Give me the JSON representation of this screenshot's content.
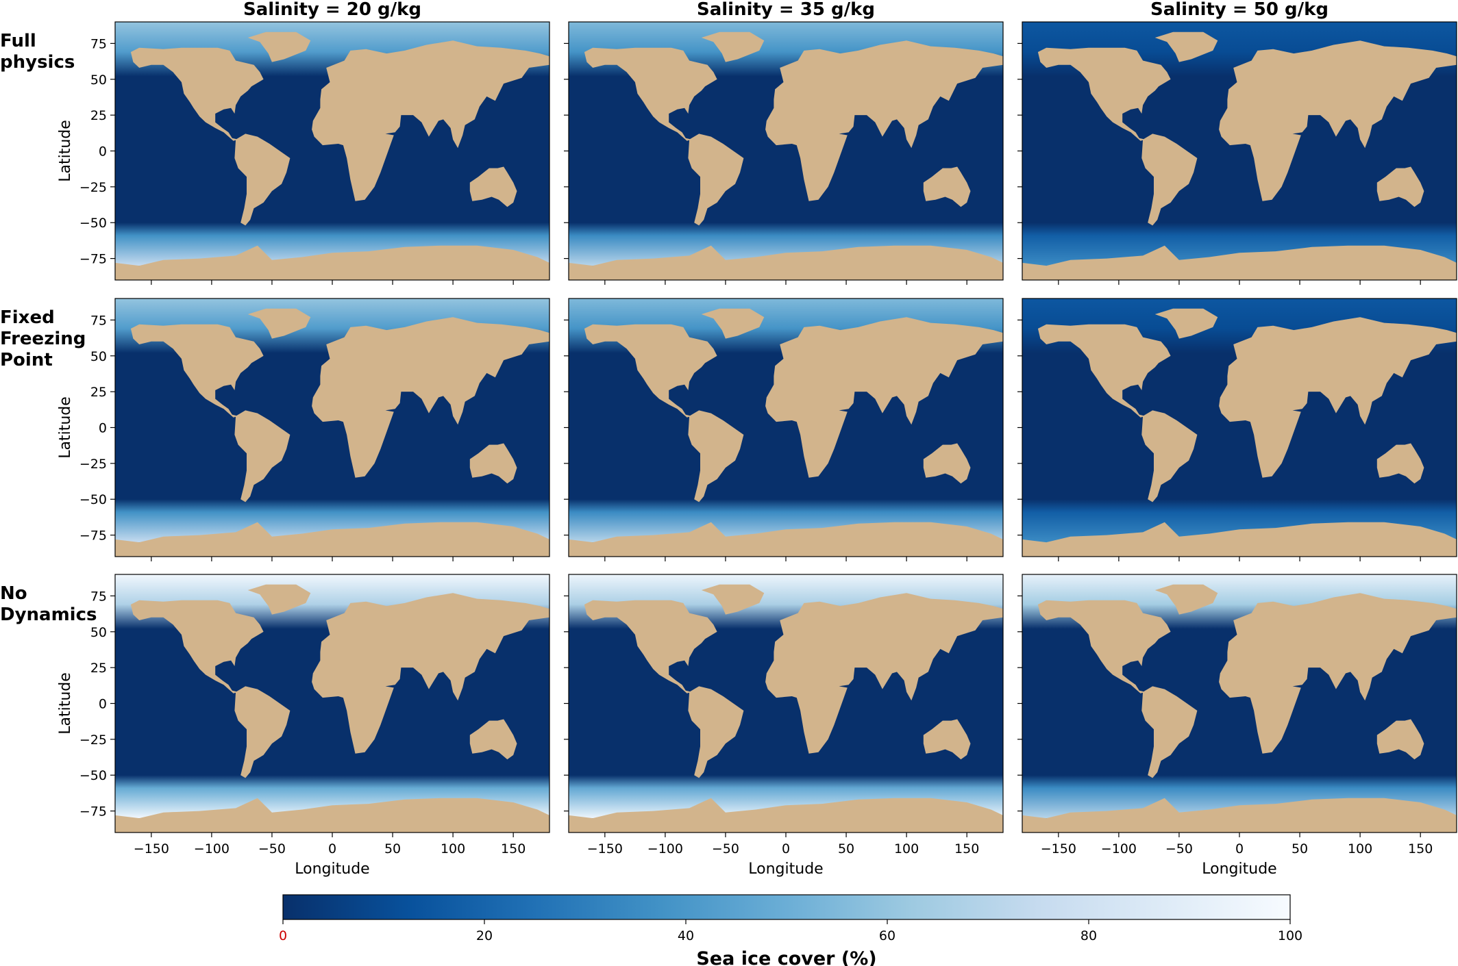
{
  "chart_data": {
    "type": "heatmap",
    "title": "",
    "columns": [
      "Salinity = 20 g/kg",
      "Salinity = 35 g/kg",
      "Salinity = 50 g/kg"
    ],
    "rows": [
      "Full physics",
      "Fixed Freezing Point",
      "No Dynamics"
    ],
    "row_label_lines": [
      [
        "Full",
        "physics"
      ],
      [
        "Fixed",
        "Freezing",
        "Point"
      ],
      [
        "No",
        "Dynamics"
      ]
    ],
    "xlabel": "Longitude",
    "ylabel": "Latitude",
    "xlim": [
      -180,
      180
    ],
    "ylim": [
      -90,
      90
    ],
    "xticks": [
      -150,
      -100,
      -50,
      0,
      50,
      100,
      150
    ],
    "yticks": [
      75,
      50,
      25,
      0,
      -25,
      -50,
      -75
    ],
    "grid": false,
    "colorbar": {
      "label": "Sea ice cover (%)",
      "range": [
        0,
        100
      ],
      "ticks": [
        0,
        20,
        40,
        60,
        80,
        100
      ],
      "zero_tick_color": "#cc0000",
      "colormap": "Blues_r",
      "stops": [
        "#08306b",
        "#08519c",
        "#2171b5",
        "#4292c6",
        "#6baed6",
        "#9ecae1",
        "#c6dbef",
        "#deebf7",
        "#f7fbff"
      ]
    },
    "land_color": "#d2b48c",
    "panels": [
      {
        "row": 0,
        "col": 0,
        "arctic_ice_pct": 60,
        "antarctic_ice_pct": 75
      },
      {
        "row": 0,
        "col": 1,
        "arctic_ice_pct": 55,
        "antarctic_ice_pct": 70
      },
      {
        "row": 0,
        "col": 2,
        "arctic_ice_pct": 15,
        "antarctic_ice_pct": 35
      },
      {
        "row": 1,
        "col": 0,
        "arctic_ice_pct": 60,
        "antarctic_ice_pct": 75
      },
      {
        "row": 1,
        "col": 1,
        "arctic_ice_pct": 55,
        "antarctic_ice_pct": 70
      },
      {
        "row": 1,
        "col": 2,
        "arctic_ice_pct": 15,
        "antarctic_ice_pct": 35
      },
      {
        "row": 2,
        "col": 0,
        "arctic_ice_pct": 97,
        "antarctic_ice_pct": 97
      },
      {
        "row": 2,
        "col": 1,
        "arctic_ice_pct": 95,
        "antarctic_ice_pct": 95
      },
      {
        "row": 2,
        "col": 2,
        "arctic_ice_pct": 92,
        "antarctic_ice_pct": 70
      }
    ]
  }
}
